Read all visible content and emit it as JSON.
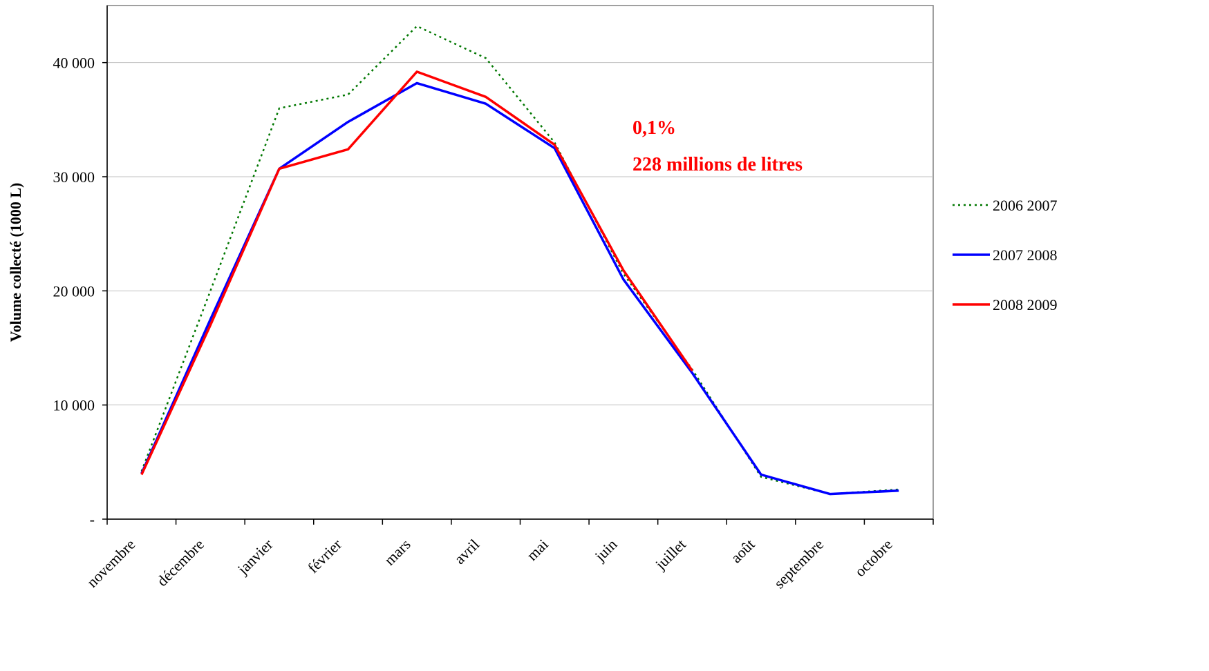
{
  "chart_data": {
    "type": "line",
    "title": "",
    "xlabel": "",
    "ylabel": "Volume collecté (1000 L)",
    "categories": [
      "novembre",
      "décembre",
      "janvier",
      "février",
      "mars",
      "avril",
      "mai",
      "juin",
      "juillet",
      "août",
      "septembre",
      "octobre"
    ],
    "ylim": [
      0,
      45000
    ],
    "yticks": [
      0,
      10000,
      20000,
      30000,
      40000
    ],
    "ytick_labels": [
      "-",
      "10 000",
      "20 000",
      "30 000",
      "40 000"
    ],
    "grid": true,
    "legend_position": "right",
    "series": [
      {
        "name": "2006 2007",
        "color": "#007700",
        "dash": "dotted",
        "values": [
          4200,
          20000,
          36000,
          37200,
          43200,
          40400,
          33000,
          21500,
          13100,
          3700,
          2200,
          2600
        ]
      },
      {
        "name": "2007 2008",
        "color": "#0000ff",
        "dash": "solid",
        "values": [
          4000,
          17500,
          30700,
          34800,
          38200,
          36400,
          32500,
          21000,
          12800,
          3900,
          2200,
          2500
        ]
      },
      {
        "name": "2008 2009",
        "color": "#ff0000",
        "dash": "solid",
        "values": [
          3900,
          17000,
          30700,
          32400,
          39200,
          37000,
          32800,
          21800,
          13000,
          null,
          null,
          null
        ]
      }
    ],
    "annotations": [
      {
        "text": "0,1%",
        "color": "#ff0000"
      },
      {
        "text": "228 millions de litres",
        "color": "#ff0000"
      }
    ]
  }
}
